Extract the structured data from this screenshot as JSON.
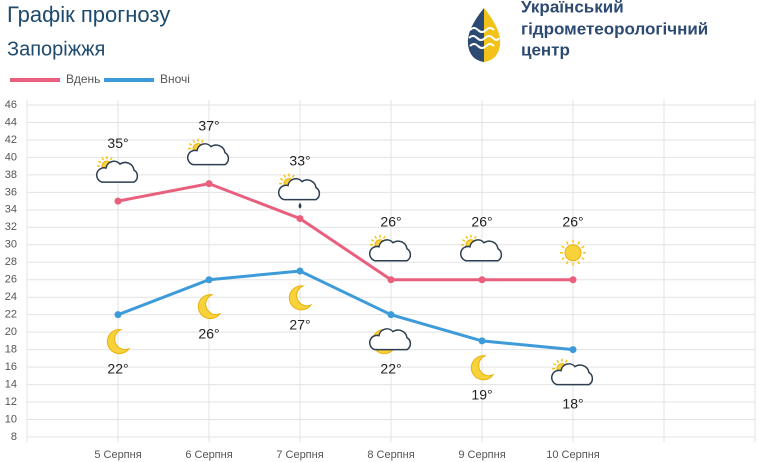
{
  "title": "Графік прогнозу",
  "subtitle": "Запоріжжя",
  "logo": {
    "lines": [
      "Український",
      "гідрометеорологічний",
      "центр"
    ]
  },
  "chart_data": {
    "type": "line",
    "categories": [
      "5 Серпня",
      "6 Серпня",
      "7 Серпня",
      "8 Серпня",
      "9 Серпня",
      "10 Серпня"
    ],
    "series": [
      {
        "name": "Вдень",
        "color": "#e9607f",
        "values": [
          35,
          37,
          33,
          26,
          26,
          26
        ],
        "value_labels": [
          "35°",
          "37°",
          "33°",
          "26°",
          "26°",
          "26°"
        ]
      },
      {
        "name": "Вночі",
        "color": "#3d9bd9",
        "values": [
          22,
          26,
          27,
          22,
          19,
          18
        ],
        "value_labels": [
          "22°",
          "26°",
          "27°",
          "22°",
          "19°",
          "18°"
        ]
      }
    ],
    "ylim": [
      8,
      46
    ],
    "yticks": [
      8,
      10,
      12,
      14,
      16,
      18,
      20,
      22,
      24,
      26,
      28,
      30,
      32,
      34,
      36,
      38,
      40,
      42,
      44,
      46
    ],
    "grid": true,
    "legend": "top-left"
  }
}
